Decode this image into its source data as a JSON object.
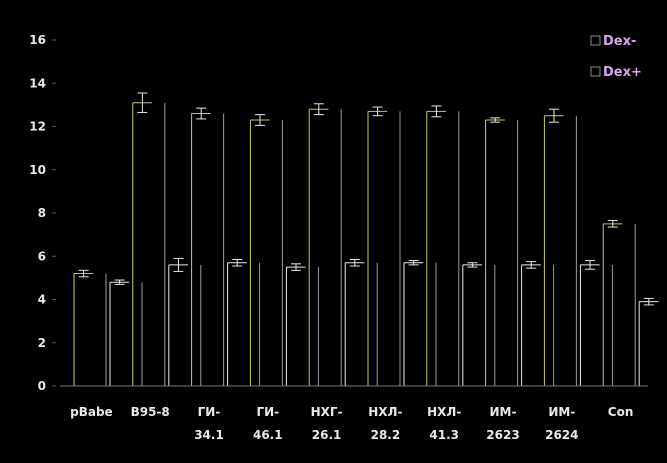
{
  "chart_data": {
    "type": "bar",
    "categories": [
      [
        "pBabe"
      ],
      [
        "B95-8"
      ],
      [
        "ГИ-",
        "34.1"
      ],
      [
        "ГИ-",
        "46.1"
      ],
      [
        "НХГ-",
        "26.1"
      ],
      [
        "НХЛ-",
        "28.2"
      ],
      [
        "НХЛ-",
        "41.3"
      ],
      [
        "ИМ-",
        "2623"
      ],
      [
        "ИМ-",
        "2624"
      ],
      [
        "Con"
      ]
    ],
    "series": [
      {
        "name": "Dex-",
        "values": [
          5.2,
          13.1,
          12.6,
          12.3,
          12.8,
          12.7,
          12.7,
          12.3,
          12.5,
          7.5
        ],
        "errors": [
          0.15,
          0.45,
          0.25,
          0.25,
          0.25,
          0.2,
          0.25,
          0.1,
          0.3,
          0.15
        ],
        "color": "#c8c86a"
      },
      {
        "name": "Dex+",
        "values": [
          4.8,
          5.6,
          5.7,
          5.5,
          5.7,
          5.7,
          5.6,
          5.6,
          5.6,
          3.9
        ],
        "errors": [
          0.1,
          0.3,
          0.15,
          0.15,
          0.15,
          0.1,
          0.1,
          0.15,
          0.2,
          0.15
        ],
        "color": "#ececec"
      }
    ],
    "ylim": [
      0,
      16
    ],
    "yticks": [
      0,
      2,
      4,
      6,
      8,
      10,
      12,
      14,
      16
    ],
    "legend_position": "top-right",
    "grid": false,
    "background": "#000000",
    "error_bar_color": "#e8e8e8"
  }
}
